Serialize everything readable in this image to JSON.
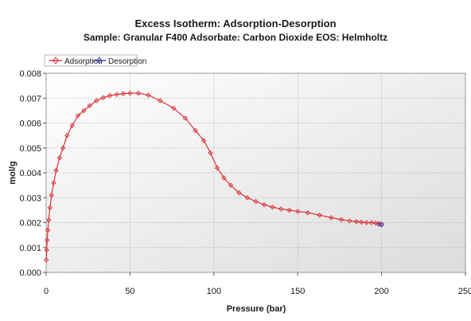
{
  "chart_data": {
    "type": "line",
    "title": "Excess Isotherm: Adsorption-Desorption",
    "subtitle": "Sample: Granular F400   Adsorbate: Carbon Dioxide   EOS: Helmholtz",
    "xlabel": "Pressure (bar)",
    "ylabel": "mol/g",
    "xlim": [
      0,
      250
    ],
    "ylim": [
      0,
      0.008
    ],
    "x_ticks": [
      "0",
      "50",
      "100",
      "150",
      "200",
      "250"
    ],
    "y_ticks": [
      "0.000",
      "0.001",
      "0.002",
      "0.003",
      "0.004",
      "0.005",
      "0.006",
      "0.007",
      "0.008"
    ],
    "grid": true,
    "legend_position": "top-left",
    "series": [
      {
        "name": "Adsorption",
        "color": "#d9343a",
        "marker": "diamond",
        "x": [
          0.1,
          0.3,
          0.6,
          1.0,
          1.5,
          2.3,
          3.2,
          4.5,
          6.0,
          8.0,
          10.0,
          12.5,
          15.5,
          19.0,
          22.5,
          26.0,
          30.0,
          34.0,
          38.0,
          42.0,
          46.0,
          50.0,
          55.0,
          61.0,
          68.0,
          76.0,
          83.0,
          89.0,
          94.0,
          98.0,
          102.0,
          106.0,
          110.0,
          115.0,
          120.0,
          125.0,
          130.0,
          135.0,
          140.0,
          145.0,
          150.0,
          156.0,
          163.0,
          170.0,
          176.0,
          181.0,
          185.0,
          188.0,
          191.0,
          194.0,
          196.5,
          198.5,
          200.0
        ],
        "y": [
          0.0005,
          0.0009,
          0.0013,
          0.0017,
          0.0021,
          0.0026,
          0.0031,
          0.0036,
          0.0041,
          0.0046,
          0.005,
          0.0055,
          0.0059,
          0.0063,
          0.0065,
          0.0067,
          0.0069,
          0.00702,
          0.0071,
          0.00715,
          0.00718,
          0.0072,
          0.0072,
          0.00712,
          0.0069,
          0.0066,
          0.0062,
          0.0057,
          0.0053,
          0.0048,
          0.0042,
          0.0038,
          0.0035,
          0.0032,
          0.003,
          0.00285,
          0.00272,
          0.00262,
          0.00255,
          0.0025,
          0.00245,
          0.0024,
          0.0023,
          0.0022,
          0.00212,
          0.00207,
          0.00204,
          0.00202,
          0.002,
          0.002,
          0.00198,
          0.00196,
          0.00194
        ]
      },
      {
        "name": "Desorption",
        "color": "#3f4fb3",
        "marker": "diamond",
        "x": [
          200.0,
          198.5
        ],
        "y": [
          0.00191,
          0.00193
        ]
      }
    ]
  }
}
